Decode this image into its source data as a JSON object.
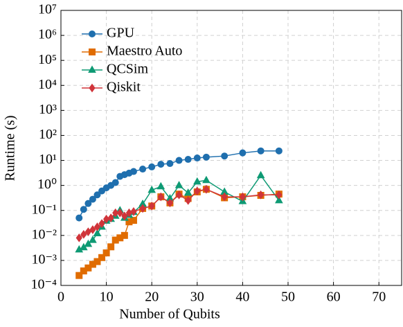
{
  "chart_data": {
    "type": "line",
    "xlabel": "Number of Qubits",
    "ylabel": "Runtime (s)",
    "x": [
      4,
      5,
      6,
      7,
      8,
      9,
      10,
      11,
      12,
      13,
      14,
      15,
      16,
      18,
      20,
      22,
      24,
      26,
      28,
      30,
      32,
      36,
      40,
      44,
      48
    ],
    "series": [
      {
        "name": "GPU",
        "color": "#1f6fae",
        "marker": "circle",
        "values": [
          0.05,
          0.11,
          0.19,
          0.28,
          0.42,
          0.6,
          0.8,
          1.0,
          1.3,
          2.3,
          2.7,
          3.1,
          3.6,
          4.5,
          5.5,
          7,
          7.5,
          10,
          11,
          12.5,
          13.5,
          15,
          20,
          24,
          24
        ]
      },
      {
        "name": "Maestro Auto",
        "color": "#e06c00",
        "marker": "square",
        "values": [
          0.00025,
          0.00038,
          0.0005,
          0.0007,
          0.0009,
          0.0013,
          0.002,
          0.0035,
          0.0065,
          0.008,
          0.01,
          0.035,
          0.04,
          0.12,
          0.15,
          0.35,
          0.2,
          0.45,
          0.3,
          0.55,
          0.7,
          0.32,
          0.35,
          0.4,
          0.45
        ]
      },
      {
        "name": "QCSim",
        "color": "#0e9a74",
        "marker": "triangle",
        "values": [
          0.0027,
          0.0033,
          0.0045,
          0.0065,
          0.012,
          0.022,
          0.038,
          0.045,
          0.06,
          0.1,
          0.05,
          0.065,
          0.085,
          0.18,
          0.65,
          0.9,
          0.3,
          1.0,
          0.5,
          1.4,
          1.6,
          0.55,
          0.23,
          2.5,
          0.25
        ]
      },
      {
        "name": "Qiskit",
        "color": "#d0343a",
        "marker": "diamond",
        "values": [
          0.008,
          0.011,
          0.014,
          0.017,
          0.022,
          0.03,
          0.045,
          0.05,
          0.08,
          0.08,
          0.06,
          0.08,
          0.09,
          0.12,
          0.15,
          0.35,
          0.2,
          0.42,
          0.25,
          0.6,
          0.7,
          0.35,
          0.35,
          0.42,
          0.42
        ]
      }
    ],
    "xlim": [
      0,
      75
    ],
    "xticks": [
      0,
      10,
      20,
      30,
      40,
      50,
      60,
      70
    ],
    "ylim": [
      0.0001,
      10000000
    ],
    "yscale": "log",
    "yticks": [
      {
        "value": 0.0001,
        "label": "10⁻⁴"
      },
      {
        "value": 0.001,
        "label": "10⁻³"
      },
      {
        "value": 0.01,
        "label": "10⁻²"
      },
      {
        "value": 0.1,
        "label": "10⁻¹"
      },
      {
        "value": 1,
        "label": "10⁰"
      },
      {
        "value": 10,
        "label": "10¹"
      },
      {
        "value": 100,
        "label": "10²"
      },
      {
        "value": 1000,
        "label": "10³"
      },
      {
        "value": 10000,
        "label": "10⁴"
      },
      {
        "value": 100000,
        "label": "10⁵"
      },
      {
        "value": 1000000,
        "label": "10⁶"
      },
      {
        "value": 10000000,
        "label": "10⁷"
      }
    ],
    "grid": true,
    "legend": "upper left"
  }
}
